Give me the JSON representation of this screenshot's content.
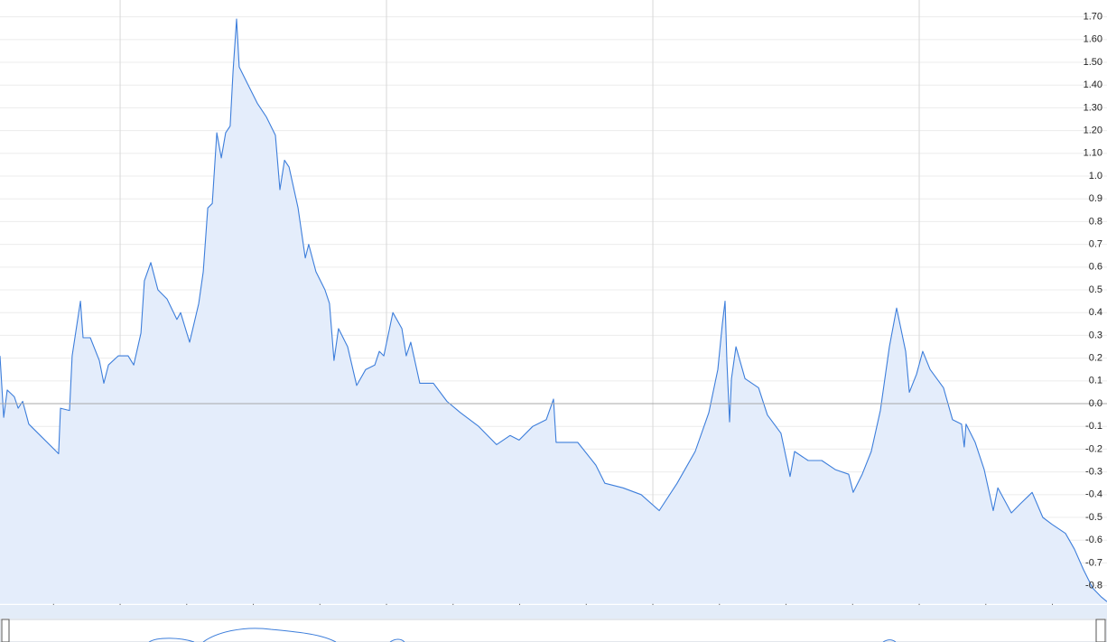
{
  "chart_data": {
    "type": "area",
    "x": [
      2010.549,
      2010.563,
      2010.576,
      2010.603,
      2010.617,
      2010.634,
      2010.657,
      2010.769,
      2010.776,
      2010.81,
      2010.82,
      2010.851,
      2010.861,
      2010.888,
      2010.922,
      2010.939,
      2010.956,
      2010.993,
      2011.03,
      2011.051,
      2011.078,
      2011.091,
      2011.115,
      2011.142,
      2011.176,
      2011.213,
      2011.227,
      2011.261,
      2011.295,
      2011.312,
      2011.329,
      2011.346,
      2011.363,
      2011.38,
      2011.396,
      2011.413,
      2011.424,
      2011.437,
      2011.447,
      2011.481,
      2011.515,
      2011.549,
      2011.583,
      2011.6,
      2011.617,
      2011.634,
      2011.668,
      2011.695,
      2011.708,
      2011.735,
      2011.769,
      2011.786,
      2011.803,
      2011.82,
      2011.854,
      2011.888,
      2011.922,
      2011.956,
      2011.973,
      2011.99,
      2012.024,
      2012.058,
      2012.074,
      2012.091,
      2012.125,
      2012.176,
      2012.227,
      2012.278,
      2012.346,
      2012.413,
      2012.464,
      2012.498,
      2012.549,
      2012.6,
      2012.627,
      2012.637,
      2012.668,
      2012.718,
      2012.786,
      2012.82,
      2012.888,
      2012.956,
      2013.024,
      2013.091,
      2013.159,
      2013.21,
      2013.244,
      2013.261,
      2013.271,
      2013.278,
      2013.288,
      2013.295,
      2013.312,
      2013.346,
      2013.397,
      2013.43,
      2013.481,
      2013.515,
      2013.532,
      2013.583,
      2013.634,
      2013.685,
      2013.735,
      2013.752,
      2013.786,
      2013.82,
      2013.854,
      2013.888,
      2013.915,
      2013.949,
      2013.963,
      2013.99,
      2014.013,
      2014.041,
      2014.091,
      2014.125,
      2014.159,
      2014.169,
      2014.176,
      2014.21,
      2014.244,
      2014.278,
      2014.295,
      2014.346,
      2014.38,
      2014.424,
      2014.464,
      2014.498,
      2014.549,
      2014.583,
      2014.617,
      2014.651,
      2014.684,
      2014.705
    ],
    "values": [
      0.21,
      -0.06,
      0.06,
      0.03,
      -0.02,
      0.01,
      -0.09,
      -0.22,
      -0.02,
      -0.03,
      0.21,
      0.45,
      0.29,
      0.29,
      0.19,
      0.09,
      0.17,
      0.21,
      0.21,
      0.17,
      0.31,
      0.54,
      0.62,
      0.5,
      0.46,
      0.37,
      0.4,
      0.27,
      0.44,
      0.58,
      0.86,
      0.88,
      1.19,
      1.08,
      1.19,
      1.22,
      1.46,
      1.69,
      1.48,
      1.4,
      1.32,
      1.26,
      1.18,
      0.94,
      1.07,
      1.04,
      0.86,
      0.64,
      0.7,
      0.58,
      0.5,
      0.44,
      0.19,
      0.33,
      0.25,
      0.08,
      0.15,
      0.17,
      0.23,
      0.21,
      0.4,
      0.33,
      0.21,
      0.27,
      0.09,
      0.09,
      0.01,
      -0.04,
      -0.1,
      -0.18,
      -0.14,
      -0.16,
      -0.1,
      -0.07,
      0.02,
      -0.17,
      -0.17,
      -0.17,
      -0.27,
      -0.35,
      -0.37,
      -0.4,
      -0.47,
      -0.35,
      -0.21,
      -0.04,
      0.15,
      0.35,
      0.45,
      0.19,
      -0.08,
      0.11,
      0.25,
      0.11,
      0.07,
      -0.05,
      -0.13,
      -0.32,
      -0.21,
      -0.25,
      -0.25,
      -0.29,
      -0.31,
      -0.39,
      -0.31,
      -0.21,
      -0.03,
      0.25,
      0.42,
      0.23,
      0.05,
      0.13,
      0.23,
      0.15,
      0.07,
      -0.07,
      -0.09,
      -0.19,
      -0.09,
      -0.17,
      -0.29,
      -0.47,
      -0.37,
      -0.48,
      -0.44,
      -0.39,
      -0.5,
      -0.53,
      -0.57,
      -0.64,
      -0.73,
      -0.81,
      -0.85,
      -0.87
    ],
    "color": "#3d7edb",
    "fill": "#e4edfb",
    "xlim": [
      2010.549,
      2014.705
    ],
    "xticks": [
      2011,
      2012,
      2013,
      2014
    ],
    "ylim": [
      -0.88,
      1.76
    ],
    "yticks": [
      {
        "value": 1.7,
        "label": "1.70"
      },
      {
        "value": 1.6,
        "label": "1.60"
      },
      {
        "value": 1.5,
        "label": "1.50"
      },
      {
        "value": 1.4,
        "label": "1.40"
      },
      {
        "value": 1.3,
        "label": "1.30"
      },
      {
        "value": 1.2,
        "label": "1.20"
      },
      {
        "value": 1.1,
        "label": "1.10"
      },
      {
        "value": 1,
        "label": "1.0"
      },
      0.9,
      0.8,
      0.7,
      0.6,
      0.5,
      0.4,
      0.3,
      0.2,
      0.1,
      {
        "value": 0,
        "label": "0.0"
      },
      -0.1,
      -0.2,
      -0.3,
      -0.4,
      -0.5,
      -0.6,
      -0.7,
      -0.8
    ],
    "grid": true
  }
}
